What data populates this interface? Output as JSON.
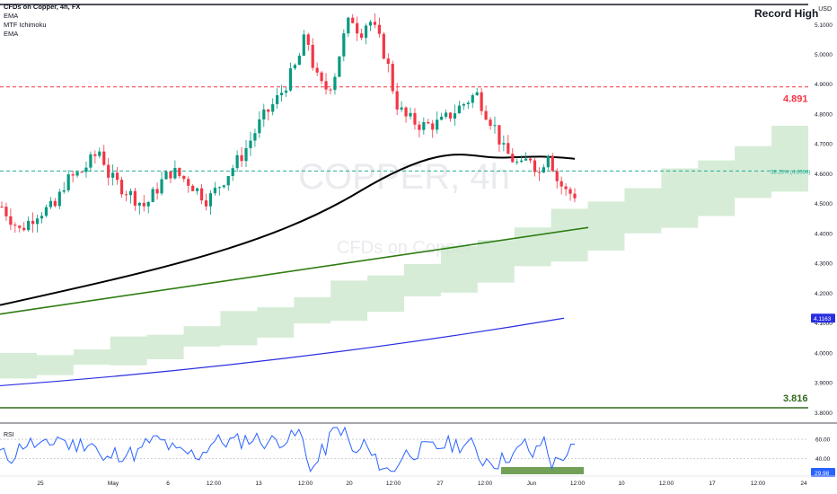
{
  "legend": {
    "symbol": "CFDs on Copper, 4h, FX",
    "indicators": [
      "EMA",
      "MTF Ichimoku",
      "EMA"
    ]
  },
  "currency": "USD",
  "watermark": {
    "line1": "COPPER, 4h",
    "line2": "CFDs on Copper"
  },
  "annotations": {
    "record_high": "Record High",
    "resistance_price": "4.891",
    "support_price": "3.816"
  },
  "chart_data": {
    "type": "candlestick",
    "symbol": "CFDs on Copper",
    "timeframe": "4h",
    "price_axis": {
      "ticks": [
        "5.1000",
        "5.0000",
        "4.9000",
        "4.8000",
        "4.7000",
        "4.6000",
        "4.5000",
        "4.4000",
        "4.3000",
        "4.2000",
        "4.1000",
        "4.0000",
        "3.9000",
        "3.8000"
      ],
      "range": [
        3.78,
        5.17
      ]
    },
    "time_axis": {
      "ticks": [
        "25",
        "May",
        "6",
        "12:00",
        "13",
        "12:00",
        "20",
        "12:00",
        "27",
        "12:00",
        "Jun",
        "12:00",
        "10",
        "12:00",
        "17",
        "12:00",
        "24"
      ]
    },
    "price_path": [
      {
        "t": 0,
        "p": 4.49
      },
      {
        "t": 2,
        "p": 4.41
      },
      {
        "t": 4,
        "p": 4.47
      },
      {
        "t": 6,
        "p": 4.49
      },
      {
        "t": 7,
        "p": 4.57
      },
      {
        "t": 9,
        "p": 4.61
      },
      {
        "t": 11,
        "p": 4.68
      },
      {
        "t": 12,
        "p": 4.59
      },
      {
        "t": 14,
        "p": 4.54
      },
      {
        "t": 16,
        "p": 4.49
      },
      {
        "t": 18,
        "p": 4.58
      },
      {
        "t": 19,
        "p": 4.61
      },
      {
        "t": 21,
        "p": 4.57
      },
      {
        "t": 23,
        "p": 4.51
      },
      {
        "t": 25,
        "p": 4.59
      },
      {
        "t": 27,
        "p": 4.67
      },
      {
        "t": 29,
        "p": 4.78
      },
      {
        "t": 31,
        "p": 4.86
      },
      {
        "t": 33,
        "p": 4.97
      },
      {
        "t": 34,
        "p": 5.07
      },
      {
        "t": 35,
        "p": 4.93
      },
      {
        "t": 36,
        "p": 4.88
      },
      {
        "t": 37,
        "p": 4.91
      },
      {
        "t": 38,
        "p": 5.04
      },
      {
        "t": 39,
        "p": 5.13
      },
      {
        "t": 40,
        "p": 5.07
      },
      {
        "t": 41,
        "p": 5.12
      },
      {
        "t": 42,
        "p": 5.06
      },
      {
        "t": 43,
        "p": 4.98
      },
      {
        "t": 44,
        "p": 4.84
      },
      {
        "t": 45,
        "p": 4.79
      },
      {
        "t": 47,
        "p": 4.76
      },
      {
        "t": 49,
        "p": 4.77
      },
      {
        "t": 51,
        "p": 4.82
      },
      {
        "t": 53,
        "p": 4.87
      },
      {
        "t": 54,
        "p": 4.81
      },
      {
        "t": 55,
        "p": 4.76
      },
      {
        "t": 56,
        "p": 4.68
      },
      {
        "t": 57,
        "p": 4.65
      },
      {
        "t": 58,
        "p": 4.62
      },
      {
        "t": 59,
        "p": 4.66
      },
      {
        "t": 60,
        "p": 4.6
      },
      {
        "t": 61,
        "p": 4.68
      },
      {
        "t": 62,
        "p": 4.58
      },
      {
        "t": 63,
        "p": 4.54
      },
      {
        "t": 64,
        "p": 4.53
      }
    ],
    "horizontal_levels": [
      {
        "price": 4.891,
        "label": "4.891",
        "color": "#f23645",
        "style": "dashed"
      },
      {
        "price": 4.6094,
        "label": "38.20% (4.6094)",
        "color": "#22ab94",
        "style": "dashed"
      },
      {
        "price": 3.816,
        "label": "3.816",
        "color": "#33691e",
        "style": "solid"
      }
    ],
    "ema_fast": {
      "color": "#000000",
      "start": 4.16,
      "end": 4.65
    },
    "ema_slow": {
      "color": "#2a2ee0",
      "start": 3.89,
      "end": 4.1163,
      "label": "4.1163"
    },
    "trendline": {
      "color": "#2e7d12",
      "from": 4.13,
      "to": 4.42
    },
    "ichimoku_cloud": {
      "color": "#c8e6c9",
      "start_top": 3.98,
      "end_top": 4.79
    },
    "rsi": {
      "label": "RSI",
      "ticks": [
        "60.00",
        "40.00"
      ],
      "range": [
        25,
        72
      ],
      "current": "29.98",
      "color": "#2962ff",
      "oversold_zone": {
        "color": "#5a8f3c"
      }
    },
    "up_color": "#089981",
    "down_color": "#f23645"
  }
}
